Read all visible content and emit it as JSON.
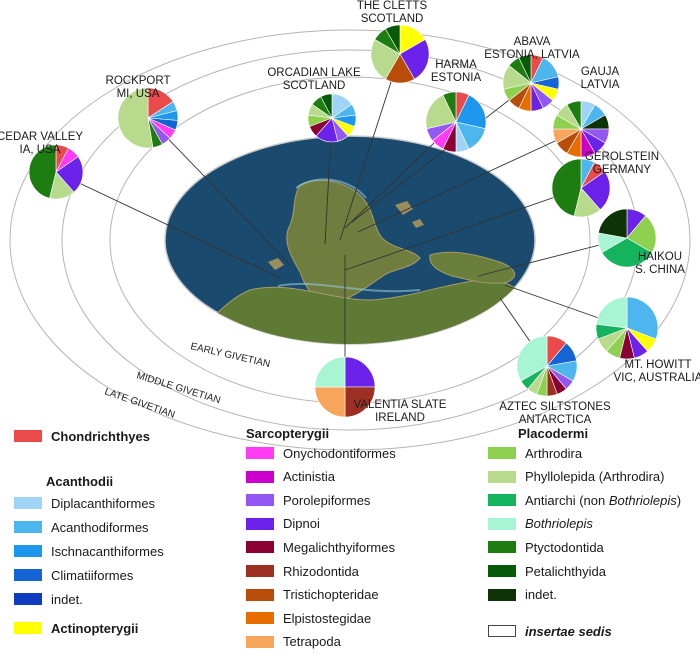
{
  "rings": [
    {
      "id": "early",
      "label": "EARLY GIVETIAN"
    },
    {
      "id": "middle",
      "label": "MIDDLE GIVETIAN"
    },
    {
      "id": "late",
      "label": "LATE GIVETIAN"
    }
  ],
  "localities": [
    {
      "id": "cedar",
      "label_lines": [
        "CEDAR VALLEY",
        "IA, USA"
      ],
      "composition": [
        [
          "Chondrichthyes",
          1
        ],
        [
          "Onychodontiformes",
          1
        ],
        [
          "Dipnoi",
          3
        ],
        [
          "Phyllolepida",
          2
        ],
        [
          "Ptyctodontida",
          6
        ]
      ]
    },
    {
      "id": "rockport",
      "label_lines": [
        "ROCKPORT",
        "MI, USA"
      ],
      "composition": [
        [
          "Chondrichthyes",
          3
        ],
        [
          "Acanthodiformes",
          1
        ],
        [
          "Ischnacanthiformes",
          1
        ],
        [
          "Climatiiformes",
          1
        ],
        [
          "Onychodontiformes",
          1
        ],
        [
          "Porolepiformes",
          1
        ],
        [
          "Ptyctodontida",
          1
        ],
        [
          "Phyllolepida",
          10
        ]
      ]
    },
    {
      "id": "orcadian",
      "label_lines": [
        "ORCADIAN LAKE",
        "SCOTLAND"
      ],
      "composition": [
        [
          "Diplacanthiformes",
          2
        ],
        [
          "Acanthodiformes",
          1
        ],
        [
          "Ischnacanthiformes",
          1
        ],
        [
          "Actinopterygii",
          1
        ],
        [
          "Porolepiformes",
          1
        ],
        [
          "Dipnoi",
          2
        ],
        [
          "Megalichthyiformes",
          1
        ],
        [
          "Arthrodira",
          1
        ],
        [
          "Phyllolepida",
          1
        ],
        [
          "Ptyctodontida",
          1
        ],
        [
          "Petalichthyida",
          1
        ]
      ]
    },
    {
      "id": "cletts",
      "label_lines": [
        "THE CLETTS",
        "SCOTLAND"
      ],
      "composition": [
        [
          "Actinopterygii",
          2
        ],
        [
          "Dipnoi",
          3
        ],
        [
          "Tristichopteridae",
          2
        ],
        [
          "Phyllolepida",
          3
        ],
        [
          "Ptyctodontida",
          1
        ],
        [
          "Petalichthyida",
          1
        ]
      ]
    },
    {
      "id": "harma",
      "label_lines": [
        "HARMA",
        "ESTONIA"
      ],
      "composition": [
        [
          "Chondrichthyes",
          1
        ],
        [
          "Ischnacanthiformes",
          3
        ],
        [
          "Acanthodiformes",
          2
        ],
        [
          "Diplacanthiformes",
          1
        ],
        [
          "Megalichthyiformes",
          1
        ],
        [
          "Onychodontiformes",
          1
        ],
        [
          "Porolepiformes",
          1
        ],
        [
          "Phyllolepida",
          3
        ],
        [
          "Ptyctodontida",
          1
        ]
      ]
    },
    {
      "id": "abava",
      "label_lines": [
        "ABAVA",
        "ESTONIA, LATVIA"
      ],
      "composition": [
        [
          "Chondrichthyes",
          1
        ],
        [
          "Acanthodiformes",
          2
        ],
        [
          "Climatiiformes",
          1
        ],
        [
          "Actinopterygii",
          1
        ],
        [
          "Porolepiformes",
          1
        ],
        [
          "Dipnoi",
          1
        ],
        [
          "Elpistostegidae",
          1
        ],
        [
          "Tristichopteridae",
          1
        ],
        [
          "Arthrodira",
          1
        ],
        [
          "Phyllolepida",
          2
        ],
        [
          "Ptyctodontida",
          1
        ],
        [
          "Petalichthyida",
          1
        ]
      ]
    },
    {
      "id": "gauja",
      "label_lines": [
        "GAUJA",
        "LATVIA"
      ],
      "composition": [
        [
          "Diplacanthiformes",
          1
        ],
        [
          "Acanthodiformes",
          1
        ],
        [
          "indet.",
          1
        ],
        [
          "Porolepiformes",
          1
        ],
        [
          "Dipnoi",
          1
        ],
        [
          "Actinistia",
          1
        ],
        [
          "Elpistostegidae",
          1
        ],
        [
          "Tristichopteridae",
          1
        ],
        [
          "Tetrapoda",
          1
        ],
        [
          "Arthrodira",
          1
        ],
        [
          "Phyllolepida",
          1
        ],
        [
          "Ptyctodontida",
          1
        ]
      ]
    },
    {
      "id": "gerolstein",
      "label_lines": [
        "GEROLSTEIN",
        "GERMANY"
      ],
      "composition": [
        [
          "Acanthodiformes",
          1
        ],
        [
          "Chondrichthyes",
          1
        ],
        [
          "Dipnoi",
          3
        ],
        [
          "Phyllolepida",
          2
        ],
        [
          "Ptyctodontida",
          6
        ]
      ]
    },
    {
      "id": "haikou",
      "label_lines": [
        "HAIKOU",
        "S. CHINA"
      ],
      "composition": [
        [
          "Dipnoi",
          1
        ],
        [
          "Arthrodira",
          2
        ],
        [
          "Antiarchi",
          3
        ],
        [
          "Bothriolepis",
          1
        ],
        [
          "indet.",
          2
        ]
      ]
    },
    {
      "id": "mthowitt",
      "label_lines": [
        "MT. HOWITT",
        "VIC, AUSTRALIA"
      ],
      "composition": [
        [
          "Acanthodiformes",
          4
        ],
        [
          "Actinopterygii",
          1
        ],
        [
          "Dipnoi",
          1
        ],
        [
          "Megalichthyiformes",
          1
        ],
        [
          "Arthrodira",
          1
        ],
        [
          "Phyllolepida",
          1
        ],
        [
          "Antiarchi",
          1
        ],
        [
          "Bothriolepis",
          3
        ]
      ]
    },
    {
      "id": "aztec",
      "label_lines": [
        "AZTEC SILTSTONES",
        "ANTARCTICA"
      ],
      "composition": [
        [
          "Chondrichthyes",
          2
        ],
        [
          "Climatiiformes",
          2
        ],
        [
          "Acanthodiformes",
          2
        ],
        [
          "Porolepiformes",
          1
        ],
        [
          "Megalichthyiformes",
          1
        ],
        [
          "Rhizodontida",
          1
        ],
        [
          "Arthrodira",
          1
        ],
        [
          "Phyllolepida",
          1
        ],
        [
          "Antiarchi",
          1
        ],
        [
          "Bothriolepis",
          6
        ]
      ]
    },
    {
      "id": "valentia",
      "label_lines": [
        "VALENTIA SLATE",
        "IRELAND"
      ],
      "composition": [
        [
          "Dipnoi",
          1
        ],
        [
          "Rhizodontida",
          1
        ],
        [
          "Tetrapoda",
          1
        ],
        [
          "Bothriolepis",
          1
        ]
      ]
    }
  ],
  "legend": {
    "chondrichthyes": {
      "label": "Chondrichthyes",
      "color": "#ea4a4a"
    },
    "acanthodii": {
      "title": "Acanthodii",
      "items": [
        {
          "key": "Diplacanthiformes",
          "label": "Diplacanthiformes",
          "color": "#9fd4f6"
        },
        {
          "key": "Acanthodiformes",
          "label": "Acanthodiformes",
          "color": "#4eb6ee"
        },
        {
          "key": "Ischnacanthiformes",
          "label": "Ischnacanthiformes",
          "color": "#1d97eb"
        },
        {
          "key": "Climatiiformes",
          "label": "Climatiiformes",
          "color": "#1464d6"
        },
        {
          "key": "indet.",
          "label": "indet.",
          "color": "#0f3cbf"
        }
      ]
    },
    "actinopterygii": {
      "label": "Actinopterygii",
      "color": "#ffff00"
    },
    "sarcopterygii": {
      "title": "Sarcopterygii",
      "items": [
        {
          "key": "Onychodontiformes",
          "label": "Onychodontiformes",
          "color": "#ff3cf3"
        },
        {
          "key": "Actinistia",
          "label": "Actinistia",
          "color": "#cc00cc"
        },
        {
          "key": "Porolepiformes",
          "label": "Porolepiformes",
          "color": "#9358f3"
        },
        {
          "key": "Dipnoi",
          "label": "Dipnoi",
          "color": "#6b22ea"
        },
        {
          "key": "Megalichthyiformes",
          "label": "Megalichthyiformes",
          "color": "#8b0033"
        },
        {
          "key": "Rhizodontida",
          "label": "Rhizodontida",
          "color": "#9d2f23"
        },
        {
          "key": "Tristichopteridae",
          "label": "Tristichopteridae",
          "color": "#b84d0a"
        },
        {
          "key": "Elpistostegidae",
          "label": "Elpistostegidae",
          "color": "#e66d00"
        },
        {
          "key": "Tetrapoda",
          "label": "Tetrapoda",
          "color": "#f7a65b"
        }
      ]
    },
    "placodermi": {
      "title": "Placodermi",
      "items": [
        {
          "key": "Arthrodira",
          "label": "Arthrodira",
          "color": "#8ed04f"
        },
        {
          "key": "Phyllolepida",
          "label": "Phyllolepida (Arthrodira)",
          "color": "#b7da8c"
        },
        {
          "key": "Antiarchi",
          "label_parts": [
            "Antiarchi (non ",
            "Bothriolepis",
            ")"
          ],
          "color": "#16b35e"
        },
        {
          "key": "Bothriolepis",
          "label": "Bothriolepis",
          "color": "#a8f5d4"
        },
        {
          "key": "Ptyctodontida",
          "label": "Ptyctodontida",
          "color": "#1e7d10"
        },
        {
          "key": "Petalichthyida",
          "label": "Petalichthyida",
          "color": "#075a07"
        },
        {
          "key": "indet.",
          "label": "indet.",
          "color": "#0d3307"
        }
      ]
    },
    "insertae": {
      "label": "insertae sedis",
      "color": "#ffffff"
    }
  }
}
